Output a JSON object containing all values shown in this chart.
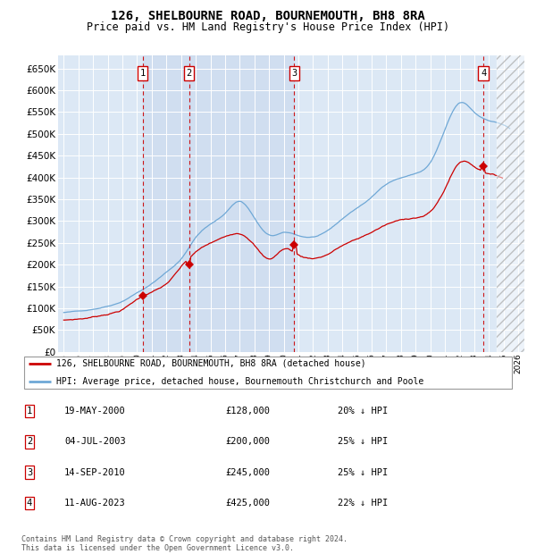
{
  "title": "126, SHELBOURNE ROAD, BOURNEMOUTH, BH8 8RA",
  "subtitle": "Price paid vs. HM Land Registry's House Price Index (HPI)",
  "legend_line1": "126, SHELBOURNE ROAD, BOURNEMOUTH, BH8 8RA (detached house)",
  "legend_line2": "HPI: Average price, detached house, Bournemouth Christchurch and Poole",
  "footer1": "Contains HM Land Registry data © Crown copyright and database right 2024.",
  "footer2": "This data is licensed under the Open Government Licence v3.0.",
  "purchases": [
    {
      "num": 1,
      "date": "19-MAY-2000",
      "price": 128000,
      "pct": "20%",
      "x": 2000.38
    },
    {
      "num": 2,
      "date": "04-JUL-2003",
      "price": 200000,
      "pct": "25%",
      "x": 2003.54
    },
    {
      "num": 3,
      "date": "14-SEP-2010",
      "price": 245000,
      "pct": "25%",
      "x": 2010.71
    },
    {
      "num": 4,
      "date": "11-AUG-2023",
      "price": 425000,
      "pct": "22%",
      "x": 2023.62
    }
  ],
  "hpi_color": "#6fa8d6",
  "price_color": "#cc0000",
  "background_chart": "#dce8f5",
  "background_figure": "#ffffff",
  "highlight_color": "#c8d8ee",
  "ylim": [
    0,
    680000
  ],
  "yticks": [
    0,
    50000,
    100000,
    150000,
    200000,
    250000,
    300000,
    350000,
    400000,
    450000,
    500000,
    550000,
    600000,
    650000
  ],
  "xlim_start": 1994.6,
  "xlim_end": 2026.4,
  "future_hatch_start": 2024.5,
  "number_box_color": "#cc0000",
  "number_box_fill": "#ffffff",
  "dashed_line_color": "#cc0000",
  "grid_color": "#ffffff",
  "spine_color": "#aaaaaa"
}
